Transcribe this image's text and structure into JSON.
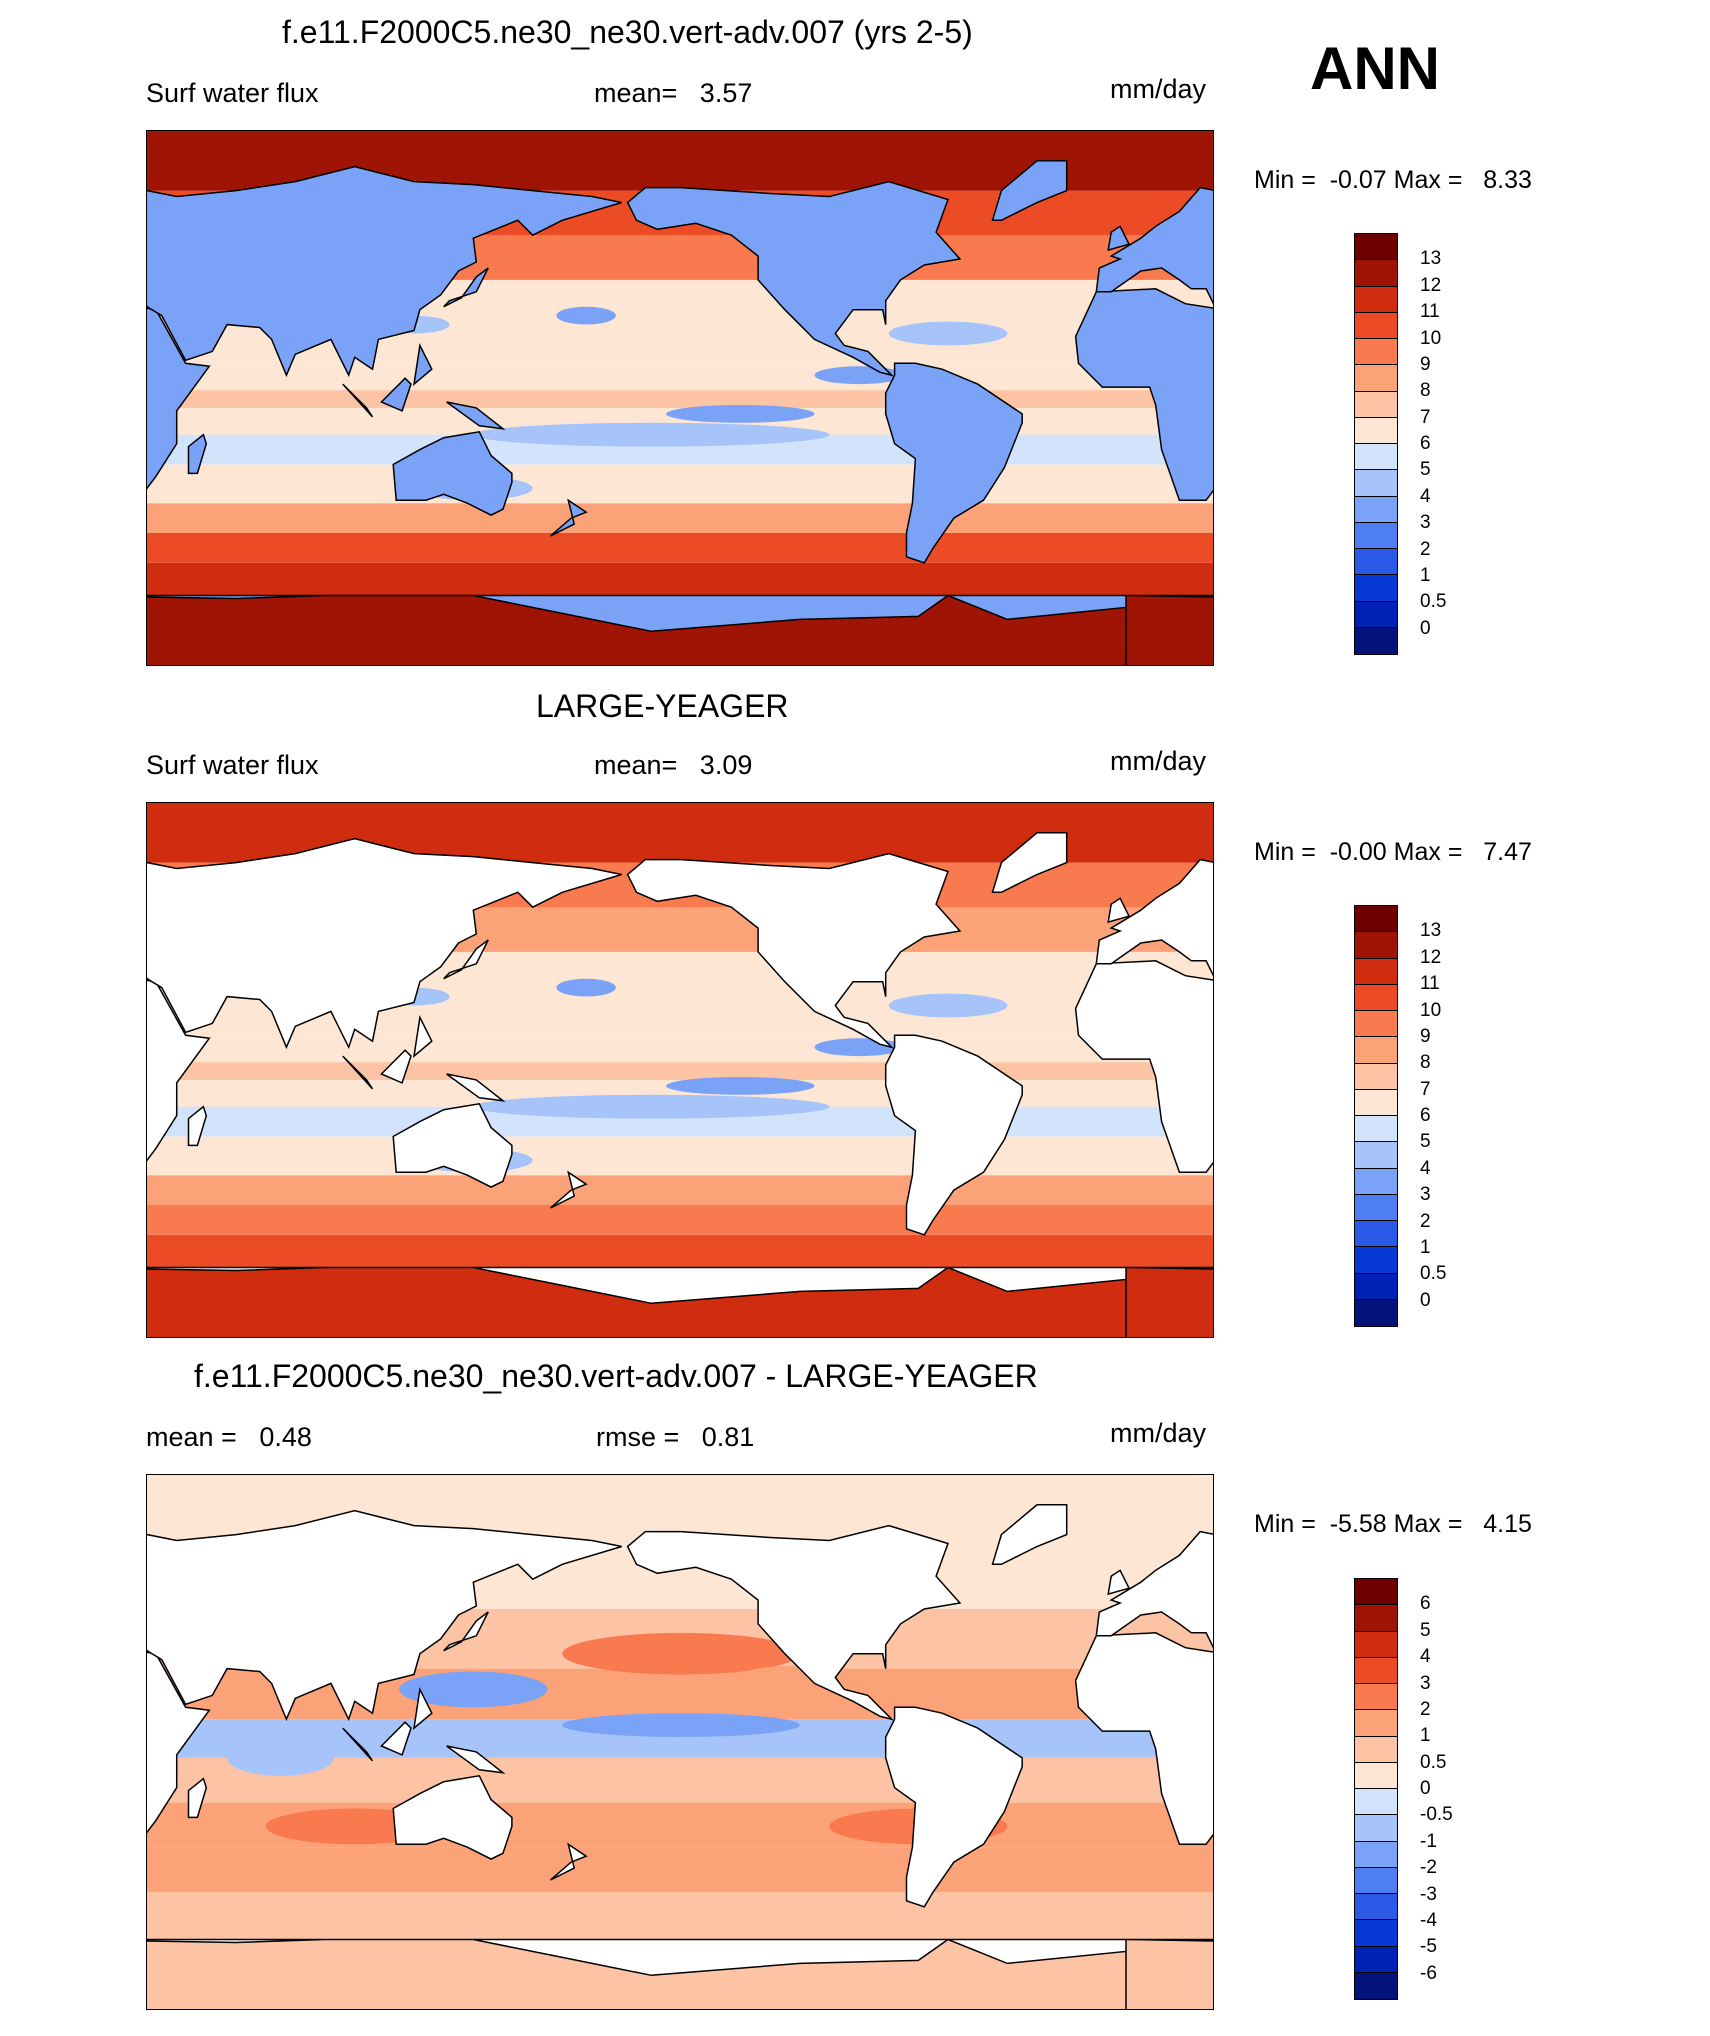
{
  "season": "ANN",
  "colors": {
    "precip_scale": [
      "#04127c",
      "#0022b4",
      "#0838d6",
      "#2a5ae6",
      "#4e7ef0",
      "#7aa2f6",
      "#a6c4fa",
      "#d2e4fc",
      "#fde6d4",
      "#fcc4a4",
      "#fba278",
      "#f97a4e",
      "#eb4c26",
      "#cf2c10",
      "#a01405",
      "#700000"
    ],
    "diff_scale": [
      "#04127c",
      "#0022b4",
      "#0838d6",
      "#2a5ae6",
      "#4e7ef0",
      "#7aa2f6",
      "#a6c4fa",
      "#d2e4fc",
      "#fde6d4",
      "#fcc4a4",
      "#fba278",
      "#f97a4e",
      "#eb4c26",
      "#cf2c10",
      "#a01405",
      "#700000"
    ],
    "land_mask": "#ffffff",
    "coastline": "#000000"
  },
  "panels": [
    {
      "title": "f.e11.F2000C5.ne30_ne30.vert-adv.007 (yrs 2-5)",
      "left_label": "Surf water flux",
      "center_label": "mean=   3.57",
      "units": "mm/day",
      "minmax": "Min =  -0.07 Max =   8.33",
      "map_type": "model",
      "colorbar_labels": [
        "13",
        "12",
        "11",
        "10",
        "9",
        "8",
        "7",
        "6",
        "5",
        "4",
        "3",
        "2",
        "1",
        "0.5",
        "0"
      ]
    },
    {
      "title": "LARGE-YEAGER",
      "left_label": "Surf water flux",
      "center_label": "mean=   3.09",
      "units": "mm/day",
      "minmax": "Min =  -0.00 Max =   7.47",
      "map_type": "obs",
      "colorbar_labels": [
        "13",
        "12",
        "11",
        "10",
        "9",
        "8",
        "7",
        "6",
        "5",
        "4",
        "3",
        "2",
        "1",
        "0.5",
        "0"
      ]
    },
    {
      "title": "f.e11.F2000C5.ne30_ne30.vert-adv.007 - LARGE-YEAGER",
      "left_label": "mean =   0.48",
      "center_label": "rmse =   0.81",
      "units": "mm/day",
      "minmax": "Min =  -5.58 Max =   4.15",
      "map_type": "diff",
      "colorbar_labels": [
        "6",
        "5",
        "4",
        "3",
        "2",
        "1",
        "0.5",
        "0",
        "-0.5",
        "-1",
        "-2",
        "-3",
        "-4",
        "-5",
        "-6"
      ]
    }
  ]
}
